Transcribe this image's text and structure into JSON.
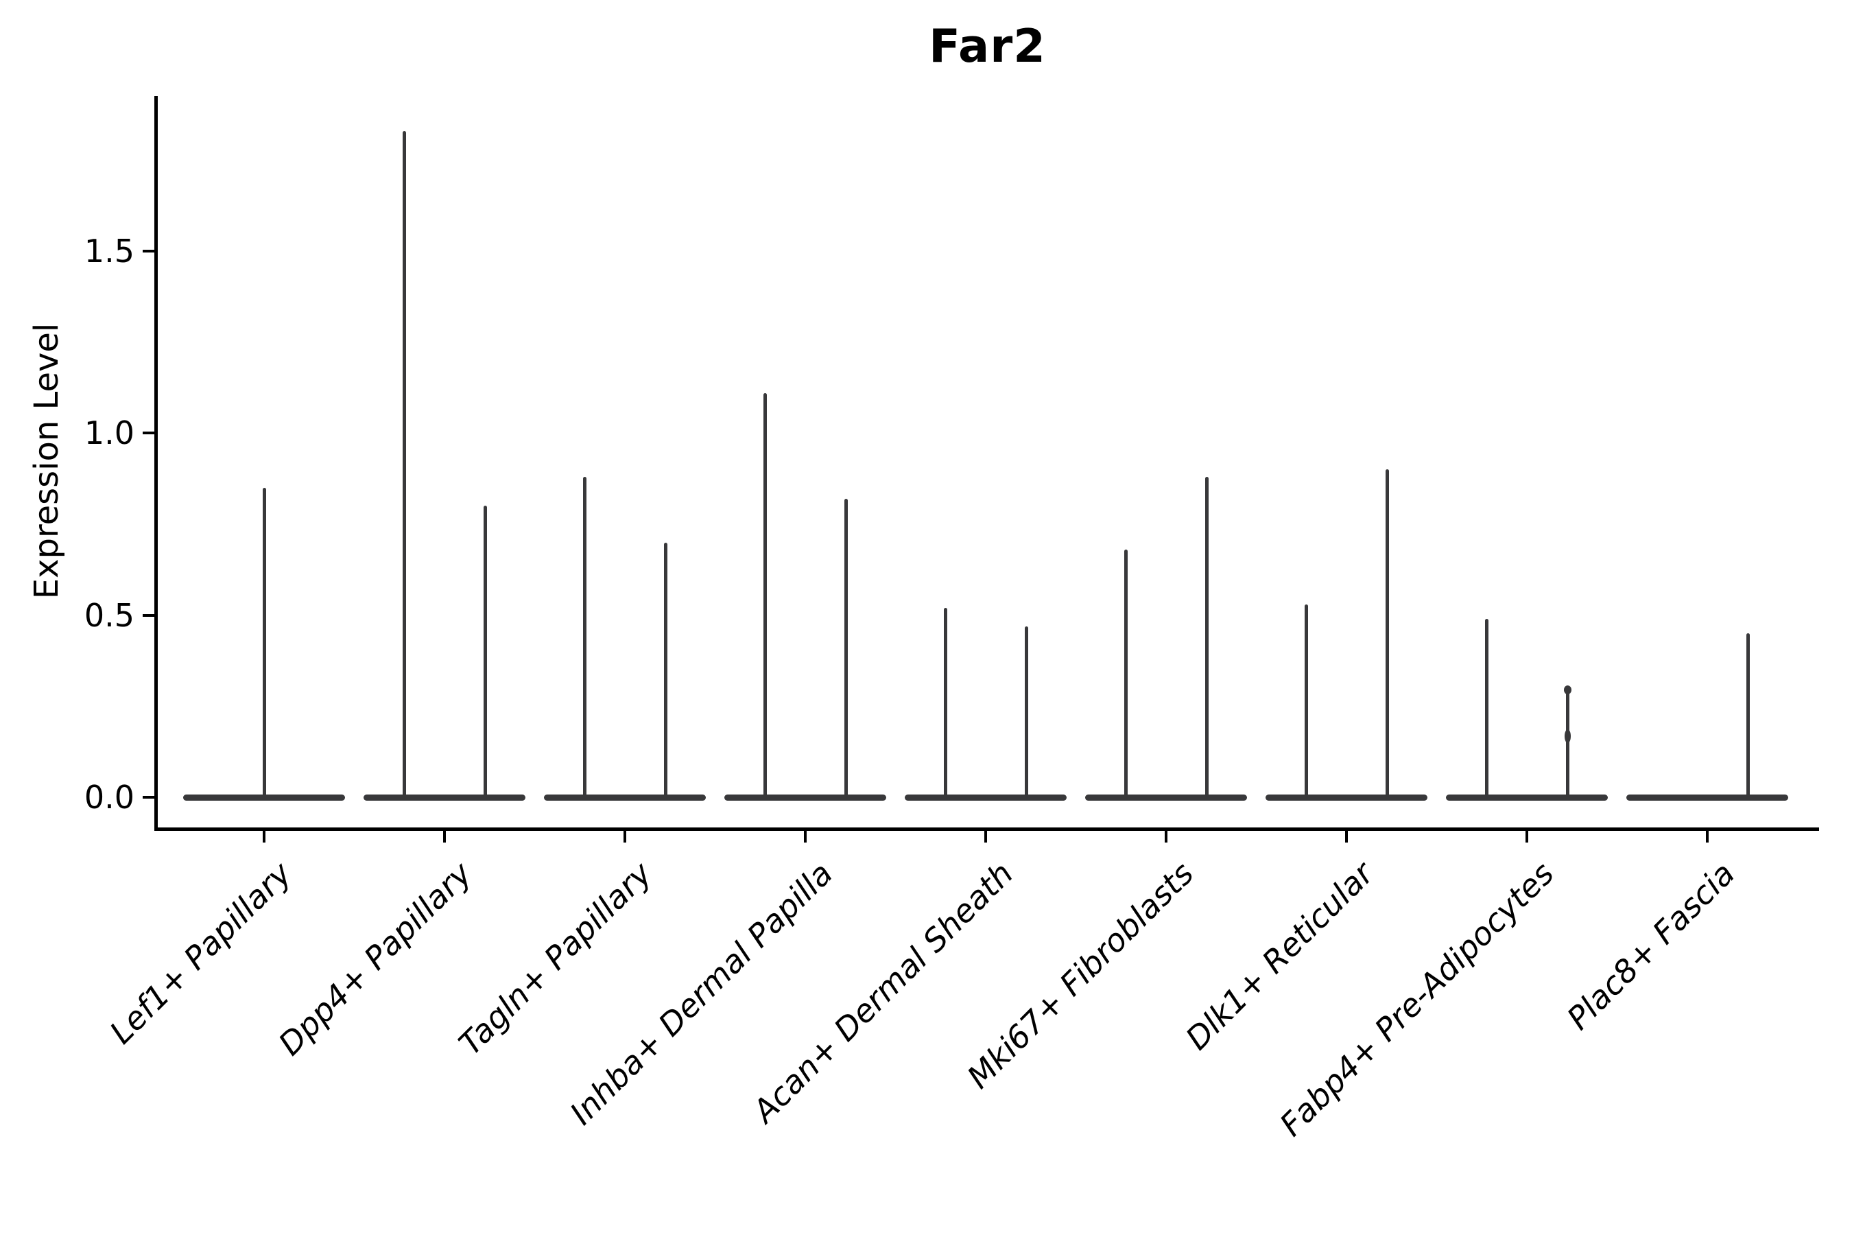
{
  "chart_data": {
    "type": "violin",
    "title": "Far2",
    "ylabel": "Expression Level",
    "xlabel": "",
    "ytick_labels": [
      "0.0",
      "0.5",
      "1.0",
      "1.5"
    ],
    "ytick_values": [
      0.0,
      0.5,
      1.0,
      1.5
    ],
    "ylim": [
      -0.09,
      1.92
    ],
    "grid": false,
    "legend_position": "none",
    "categories": [
      "Lef1+ Papillary",
      "Dpp4+ Papillary",
      "Tagln+ Papillary",
      "Inhba+ Dermal Papilla",
      "Acan+ Dermal Sheath",
      "Mki67+ Fibroblasts",
      "Dlk1+ Reticular",
      "Fabp4+ Pre-Adipocytes",
      "Plac8+ Fascia"
    ],
    "series": [
      {
        "category": "Lef1+ Papillary",
        "violins": [
          {
            "position": "center",
            "peak": 0.85
          }
        ]
      },
      {
        "category": "Dpp4+ Papillary",
        "violins": [
          {
            "position": "left",
            "peak": 1.83
          },
          {
            "position": "right",
            "peak": 0.8
          }
        ]
      },
      {
        "category": "Tagln+ Papillary",
        "violins": [
          {
            "position": "left",
            "peak": 0.88
          },
          {
            "position": "right",
            "peak": 0.7
          }
        ]
      },
      {
        "category": "Inhba+ Dermal Papilla",
        "violins": [
          {
            "position": "left",
            "peak": 1.11
          },
          {
            "position": "right",
            "peak": 0.82
          }
        ]
      },
      {
        "category": "Acan+ Dermal Sheath",
        "violins": [
          {
            "position": "left",
            "peak": 0.52
          },
          {
            "position": "right",
            "peak": 0.47
          }
        ]
      },
      {
        "category": "Mki67+ Fibroblasts",
        "violins": [
          {
            "position": "left",
            "peak": 0.68
          },
          {
            "position": "right",
            "peak": 0.88
          }
        ]
      },
      {
        "category": "Dlk1+ Reticular",
        "violins": [
          {
            "position": "left",
            "peak": 0.53
          },
          {
            "position": "right",
            "peak": 0.9
          }
        ]
      },
      {
        "category": "Fabp4+ Pre-Adipocytes",
        "violins": [
          {
            "position": "left",
            "peak": 0.49
          },
          {
            "position": "right",
            "peak": 0.3,
            "knob_top": true,
            "knot_at": 0.17
          }
        ]
      },
      {
        "category": "Plac8+ Fascia",
        "violins": [
          {
            "position": "right",
            "peak": 0.45
          }
        ]
      }
    ],
    "style": {
      "violin_color": "#38383a",
      "axis_color": "#000000",
      "text_color": "#000000",
      "background": "#ffffff",
      "x_label_style": "italic",
      "title_weight": "bold"
    }
  }
}
